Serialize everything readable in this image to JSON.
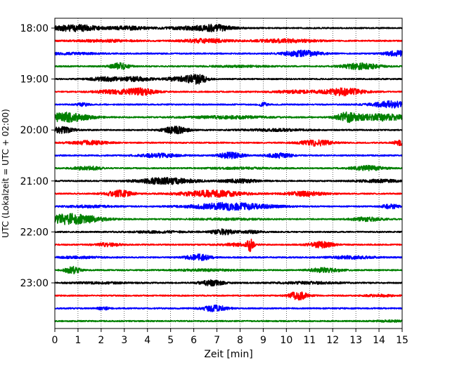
{
  "chart_data": {
    "type": "line",
    "title": "",
    "xlabel": "Zeit  [min]",
    "ylabel": "UTC (Lokalzeit = UTC + 02:00)",
    "xlim": [
      0,
      15
    ],
    "xticks": [
      0,
      1,
      2,
      3,
      4,
      5,
      6,
      7,
      8,
      9,
      10,
      11,
      12,
      13,
      14,
      15
    ],
    "xtick_labels": [
      "0",
      "1",
      "2",
      "3",
      "4",
      "5",
      "6",
      "7",
      "8",
      "9",
      "10",
      "11",
      "12",
      "13",
      "14",
      "15"
    ],
    "ytick_labels": [
      "18:00",
      "19:00",
      "20:00",
      "21:00",
      "22:00",
      "23:00"
    ],
    "grid": "vertical dotted",
    "trace_colors": [
      "#000000",
      "#ff0000",
      "#0000ff",
      "#008000"
    ],
    "trace_interval_minutes": 15,
    "traces": [
      {
        "start": "18:00",
        "color": "#000000",
        "bursts": [
          [
            0.9,
            1.5,
            0.5
          ],
          [
            3.2,
            1.3,
            0.25
          ],
          [
            6.3,
            2.0,
            0.3
          ],
          [
            7.0,
            0.8,
            0.3
          ]
        ]
      },
      {
        "start": "18:15",
        "color": "#ff0000",
        "bursts": [
          [
            2.2,
            2.0,
            0.15
          ],
          [
            6.5,
            1.5,
            0.3
          ],
          [
            10.0,
            2.0,
            0.25
          ]
        ]
      },
      {
        "start": "18:30",
        "color": "#0000ff",
        "bursts": [
          [
            10.7,
            1.2,
            0.45
          ],
          [
            14.8,
            0.8,
            0.4
          ],
          [
            0.6,
            2.0,
            0.12
          ]
        ]
      },
      {
        "start": "18:45",
        "color": "#008000",
        "bursts": [
          [
            2.8,
            0.6,
            0.5
          ],
          [
            13.2,
            1.2,
            0.45
          ],
          [
            8.0,
            2.0,
            0.1
          ]
        ]
      },
      {
        "start": "19:00",
        "color": "#000000",
        "bursts": [
          [
            2.2,
            1.0,
            0.3
          ],
          [
            3.5,
            1.0,
            0.3
          ],
          [
            5.5,
            1.0,
            0.35
          ],
          [
            6.2,
            0.6,
            0.6
          ]
        ]
      },
      {
        "start": "19:15",
        "color": "#ff0000",
        "bursts": [
          [
            2.5,
            1.2,
            0.25
          ],
          [
            3.7,
            1.0,
            0.5
          ],
          [
            12.5,
            1.2,
            0.55
          ],
          [
            10.5,
            1.5,
            0.2
          ]
        ]
      },
      {
        "start": "19:30",
        "color": "#0000ff",
        "bursts": [
          [
            14.5,
            1.2,
            0.5
          ],
          [
            9.0,
            0.3,
            0.25
          ],
          [
            1.2,
            0.4,
            0.2
          ]
        ]
      },
      {
        "start": "19:45",
        "color": "#008000",
        "bursts": [
          [
            0.5,
            1.5,
            0.7
          ],
          [
            12.6,
            0.6,
            0.6
          ],
          [
            14.0,
            2.0,
            0.5
          ],
          [
            7.5,
            2.5,
            0.2
          ]
        ]
      },
      {
        "start": "20:00",
        "color": "#000000",
        "bursts": [
          [
            0.3,
            0.8,
            0.45
          ],
          [
            5.2,
            0.8,
            0.55
          ],
          [
            9.5,
            2.0,
            0.15
          ]
        ]
      },
      {
        "start": "20:15",
        "color": "#ff0000",
        "bursts": [
          [
            1.5,
            1.2,
            0.3
          ],
          [
            11.3,
            1.0,
            0.45
          ],
          [
            14.9,
            0.4,
            0.35
          ]
        ]
      },
      {
        "start": "20:30",
        "color": "#0000ff",
        "bursts": [
          [
            4.5,
            1.2,
            0.3
          ],
          [
            7.6,
            0.8,
            0.45
          ],
          [
            9.7,
            0.8,
            0.35
          ]
        ]
      },
      {
        "start": "20:45",
        "color": "#008000",
        "bursts": [
          [
            1.4,
            0.8,
            0.3
          ],
          [
            13.5,
            1.0,
            0.35
          ],
          [
            8.0,
            2.0,
            0.1
          ]
        ]
      },
      {
        "start": "21:00",
        "color": "#000000",
        "bursts": [
          [
            4.8,
            1.8,
            0.5
          ],
          [
            8.0,
            1.2,
            0.25
          ],
          [
            14.0,
            1.5,
            0.2
          ]
        ]
      },
      {
        "start": "21:15",
        "color": "#ff0000",
        "bursts": [
          [
            2.8,
            0.8,
            0.5
          ],
          [
            6.8,
            2.0,
            0.5
          ],
          [
            10.8,
            1.2,
            0.35
          ]
        ]
      },
      {
        "start": "21:30",
        "color": "#0000ff",
        "bursts": [
          [
            7.6,
            2.5,
            0.55
          ],
          [
            14.5,
            0.5,
            0.35
          ],
          [
            1.5,
            1.5,
            0.15
          ]
        ]
      },
      {
        "start": "21:45",
        "color": "#008000",
        "bursts": [
          [
            0.7,
            1.8,
            0.8
          ],
          [
            13.5,
            1.0,
            0.3
          ],
          [
            7.5,
            2.0,
            0.1
          ]
        ]
      },
      {
        "start": "22:00",
        "color": "#000000",
        "bursts": [
          [
            7.3,
            0.8,
            0.4
          ],
          [
            8.5,
            0.6,
            0.2
          ],
          [
            4.5,
            2.0,
            0.12
          ]
        ]
      },
      {
        "start": "22:15",
        "color": "#ff0000",
        "bursts": [
          [
            8.45,
            0.2,
            1.0
          ],
          [
            2.3,
            0.8,
            0.25
          ],
          [
            11.5,
            0.8,
            0.45
          ],
          [
            7.8,
            1.0,
            0.2
          ]
        ]
      },
      {
        "start": "22:30",
        "color": "#0000ff",
        "bursts": [
          [
            6.2,
            0.8,
            0.45
          ],
          [
            12.8,
            1.5,
            0.2
          ],
          [
            1.0,
            1.5,
            0.12
          ]
        ]
      },
      {
        "start": "22:45",
        "color": "#008000",
        "bursts": [
          [
            0.75,
            0.5,
            0.55
          ],
          [
            11.7,
            1.0,
            0.35
          ],
          [
            6.5,
            2.0,
            0.12
          ]
        ]
      },
      {
        "start": "23:00",
        "color": "#000000",
        "bursts": [
          [
            6.8,
            0.8,
            0.4
          ],
          [
            11.0,
            2.0,
            0.15
          ],
          [
            2.0,
            2.0,
            0.1
          ]
        ]
      },
      {
        "start": "23:15",
        "color": "#ff0000",
        "bursts": [
          [
            10.5,
            0.6,
            0.65
          ],
          [
            14.0,
            1.0,
            0.15
          ]
        ]
      },
      {
        "start": "23:30",
        "color": "#0000ff",
        "bursts": [
          [
            6.9,
            0.8,
            0.45
          ],
          [
            2.1,
            0.4,
            0.2
          ]
        ]
      },
      {
        "start": "23:45",
        "color": "#008000",
        "bursts": [
          [
            14.5,
            1.0,
            0.1
          ]
        ]
      }
    ]
  }
}
